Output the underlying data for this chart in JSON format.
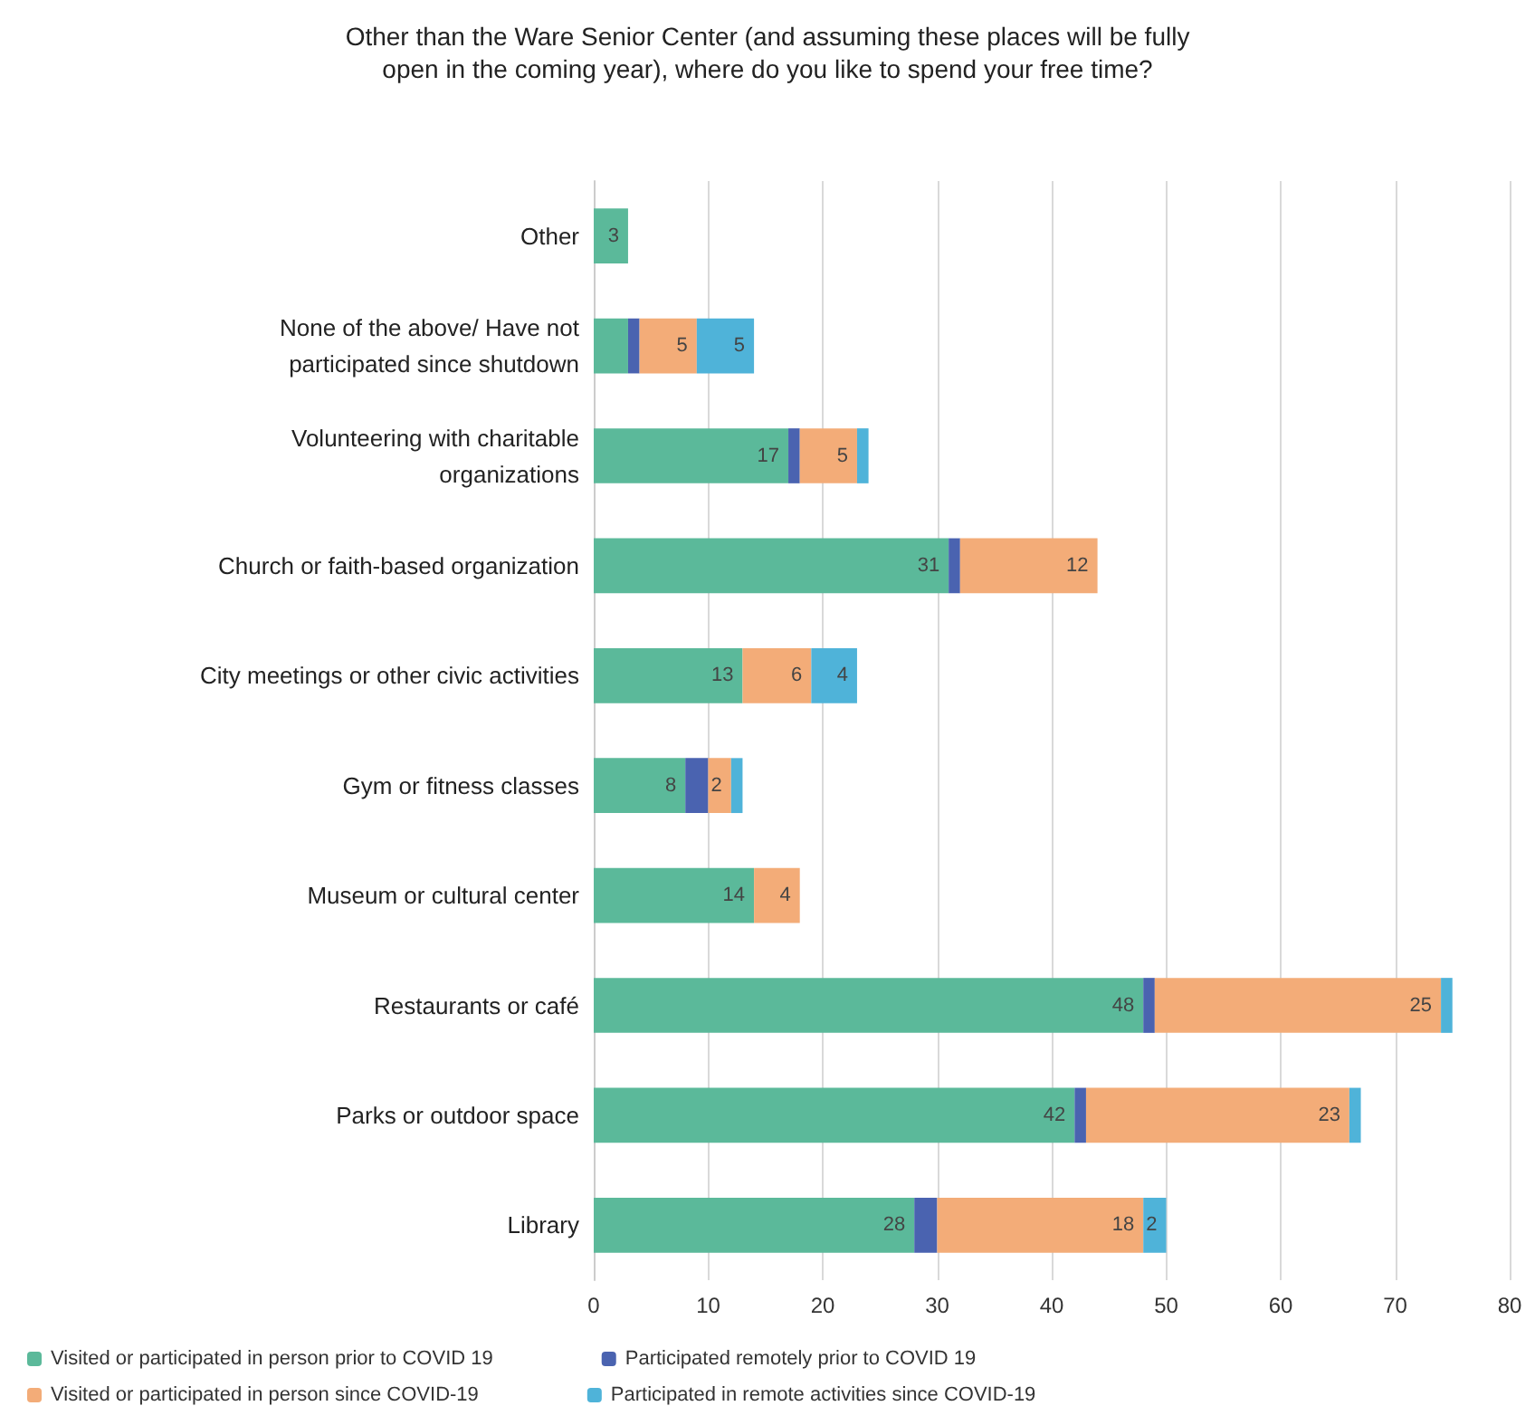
{
  "chart_data": {
    "type": "bar",
    "orientation": "horizontal",
    "stacked": true,
    "title": "Other than the Ware Senior Center (and assuming these places will be fully\nopen in the coming year), where do you like to spend your free time?",
    "categories": [
      "Other",
      "None of the above/ Have not\nparticipated since shutdown",
      "Volunteering with charitable\norganizations",
      "Church or faith-based organization",
      "City meetings or other civic activities",
      "Gym or fitness classes",
      "Museum or cultural center",
      "Restaurants or café",
      "Parks or outdoor space",
      "Library"
    ],
    "series": [
      {
        "name": "Visited or participated in person prior to COVID 19",
        "color": "#5bb99a",
        "values": [
          3,
          3,
          17,
          31,
          13,
          8,
          14,
          48,
          42,
          28
        ],
        "value_labels": [
          "3",
          null,
          "17",
          "31",
          "13",
          "8",
          "14",
          "48",
          "42",
          "28"
        ]
      },
      {
        "name": "Participated remotely prior to COVID 19",
        "color": "#4a63b0",
        "values": [
          null,
          1,
          1,
          1,
          null,
          2,
          null,
          1,
          1,
          2
        ]
      },
      {
        "name": "Visited or participated in person since COVID-19",
        "color": "#f3ac78",
        "values": [
          null,
          5,
          5,
          12,
          6,
          2,
          4,
          25,
          23,
          18
        ],
        "value_labels": [
          null,
          "5",
          "5",
          "12",
          "6",
          "2",
          "4",
          "25",
          "23",
          "18"
        ]
      },
      {
        "name": "Participated in remote activities since COVID-19",
        "color": "#4fb3d9",
        "values": [
          null,
          5,
          1,
          null,
          4,
          1,
          null,
          1,
          1,
          2
        ],
        "value_labels": [
          null,
          "5",
          null,
          null,
          "4",
          null,
          null,
          null,
          null,
          "2"
        ]
      }
    ],
    "xlim": [
      0,
      80
    ],
    "xticks": [
      0,
      10,
      20,
      30,
      40,
      50,
      60,
      70,
      80
    ],
    "grid": "x",
    "legend": "bottom"
  }
}
